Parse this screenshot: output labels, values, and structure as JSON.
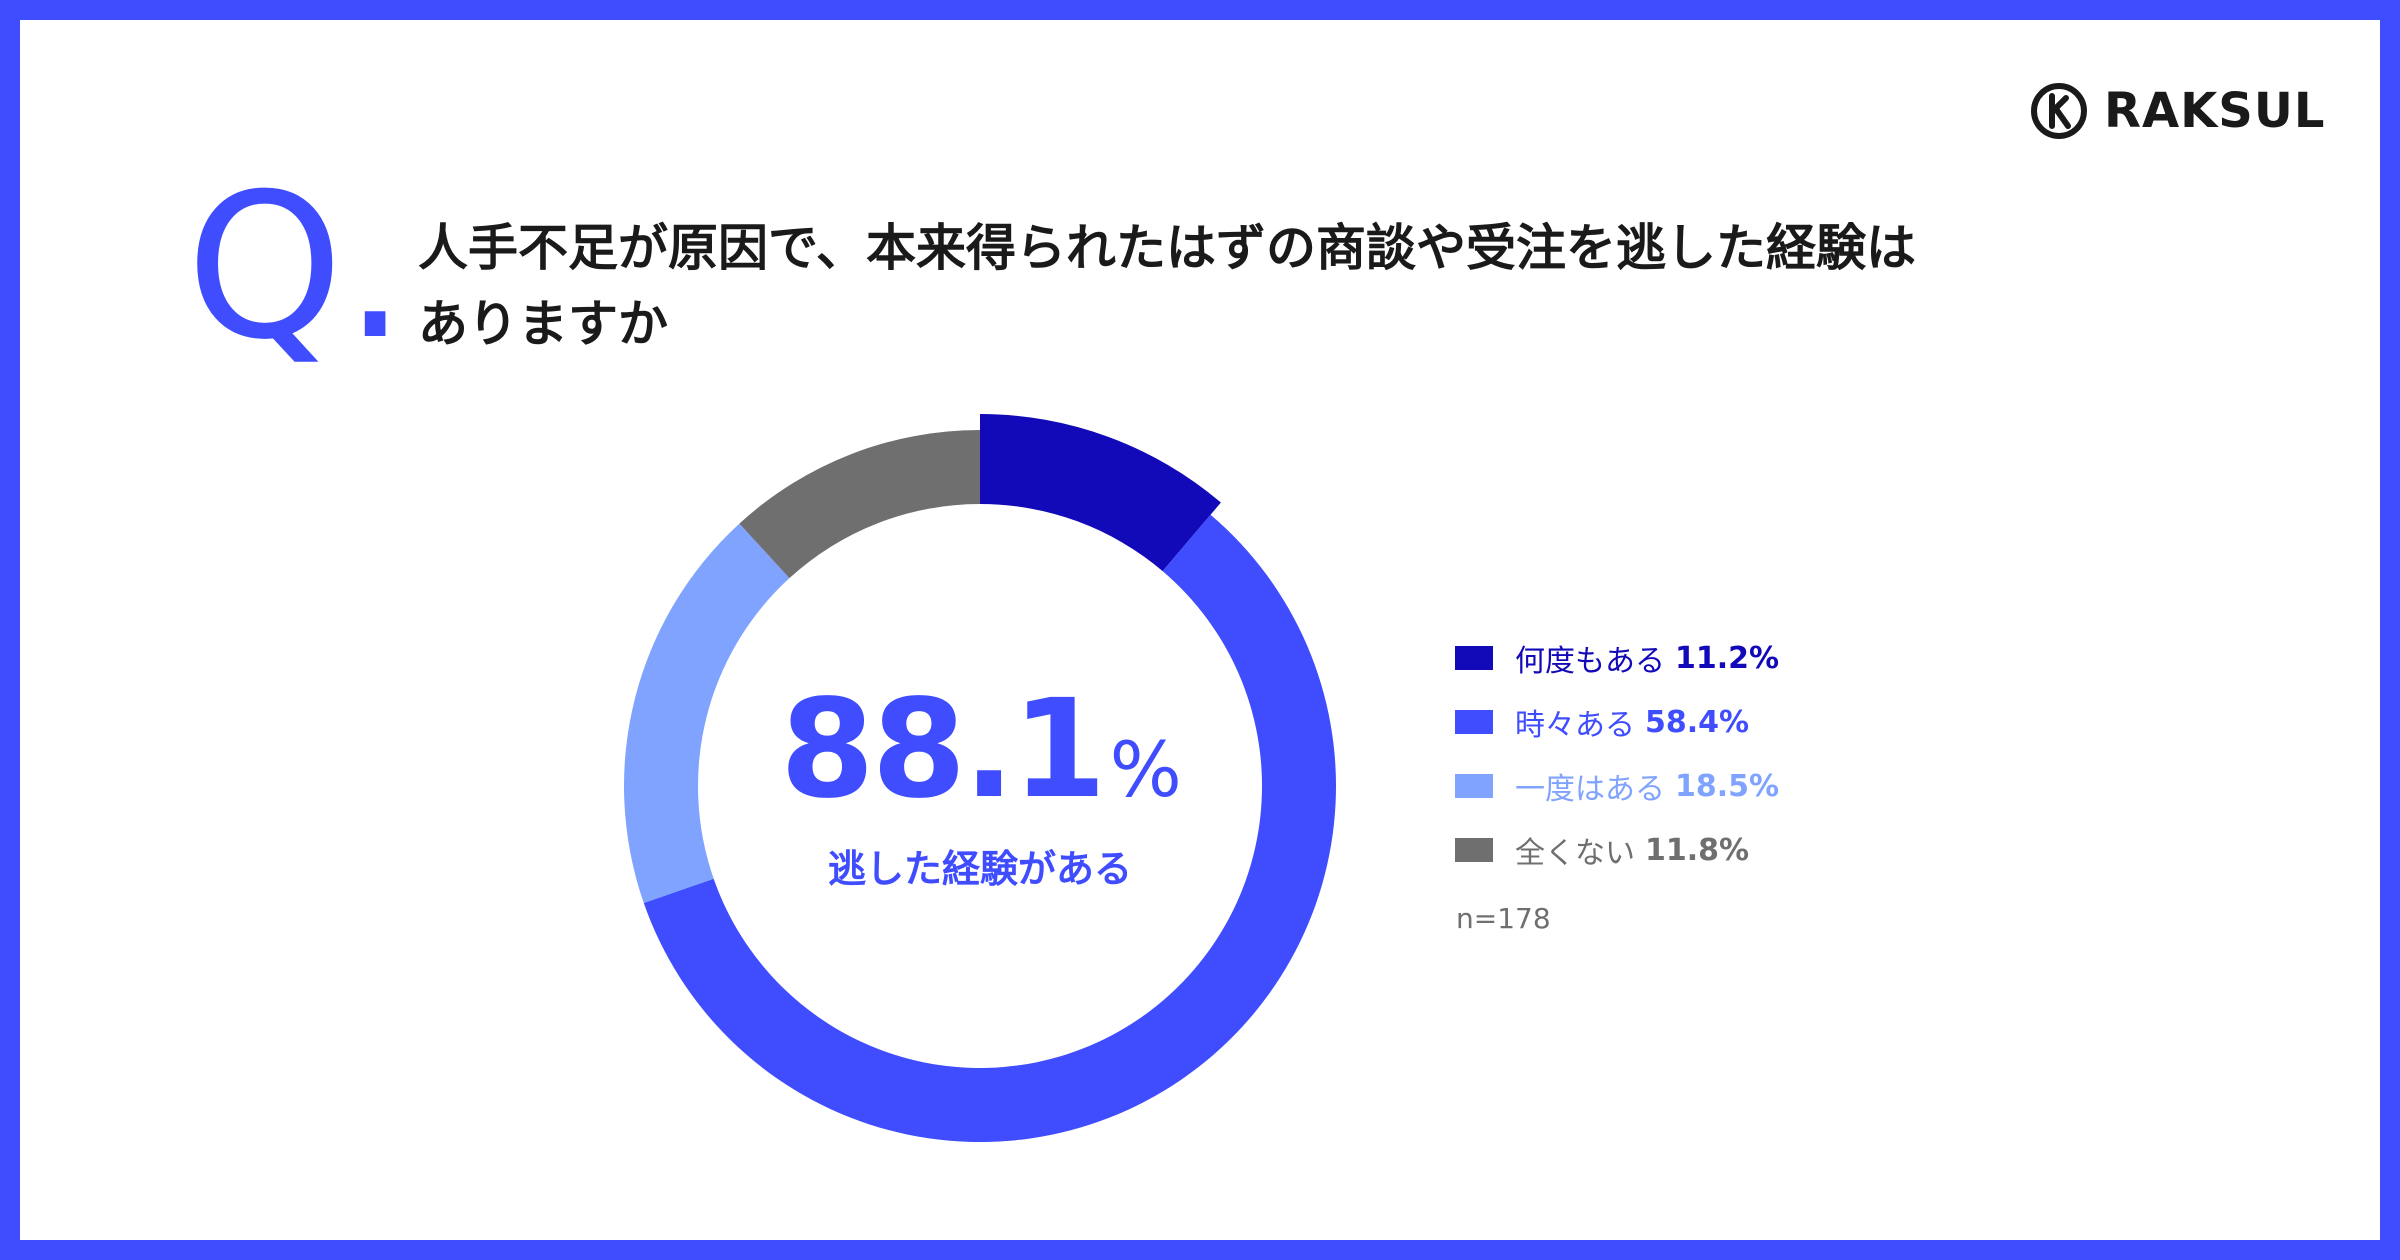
{
  "brand": {
    "name": "RAKSUL"
  },
  "question": {
    "mark": "Q.",
    "line1": "人手不足が原因で、本来得られたはずの商談や受注を逃した経験は",
    "line2": "ありますか"
  },
  "summary": {
    "value": "88.1",
    "unit": "%",
    "label": "逃した経験がある"
  },
  "sample": "n=178",
  "colors": {
    "background_frame": "#3f4dff",
    "often": "#1209b8",
    "sometimes": "#3f4dff",
    "once": "#7fa3ff",
    "never": "#6f6f6f"
  },
  "chart_data": {
    "type": "pie",
    "style": "donut",
    "categories": [
      "何度もある",
      "時々ある",
      "一度はある",
      "全くない"
    ],
    "values": [
      11.2,
      58.4,
      18.5,
      11.8
    ],
    "value_labels": [
      "11.2%",
      "58.4%",
      "18.5%",
      "11.8%"
    ],
    "colors": [
      "#1209b8",
      "#3f4dff",
      "#7fa3ff",
      "#6f6f6f"
    ],
    "start": "top",
    "direction": "clockwise",
    "legend_position": "right"
  }
}
